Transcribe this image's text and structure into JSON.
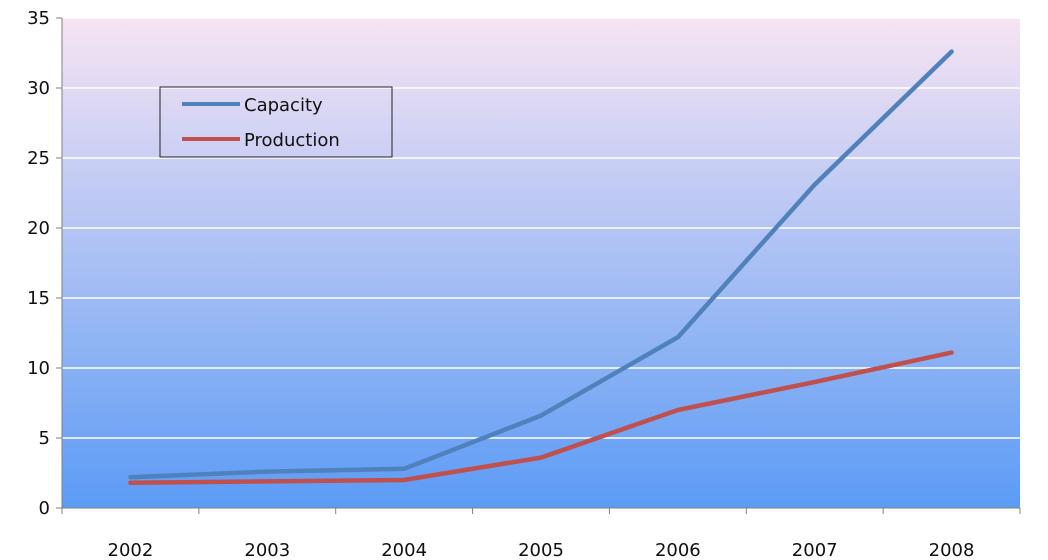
{
  "chart_data": {
    "type": "line",
    "title": "",
    "xlabel": "",
    "ylabel": "",
    "categories": [
      "2002",
      "2003",
      "2004",
      "2005",
      "2006",
      "2007",
      "2008"
    ],
    "series": [
      {
        "name": "Capacity",
        "color": "#4F81BD",
        "values": [
          2.2,
          2.6,
          2.8,
          6.6,
          12.2,
          23.1,
          32.6
        ]
      },
      {
        "name": "Production",
        "color": "#C0504D",
        "values": [
          1.8,
          1.9,
          2.0,
          3.6,
          7.0,
          9.0,
          11.1
        ]
      }
    ],
    "ylim": [
      0,
      35
    ],
    "yticks": [
      "0",
      "5",
      "10",
      "15",
      "20",
      "25",
      "30",
      "35"
    ],
    "grid": true,
    "legend_position": "top-left",
    "background_gradient": [
      "#F7E4F3",
      "#5B9BF5"
    ],
    "gridline_color": "#FFFFFF"
  }
}
